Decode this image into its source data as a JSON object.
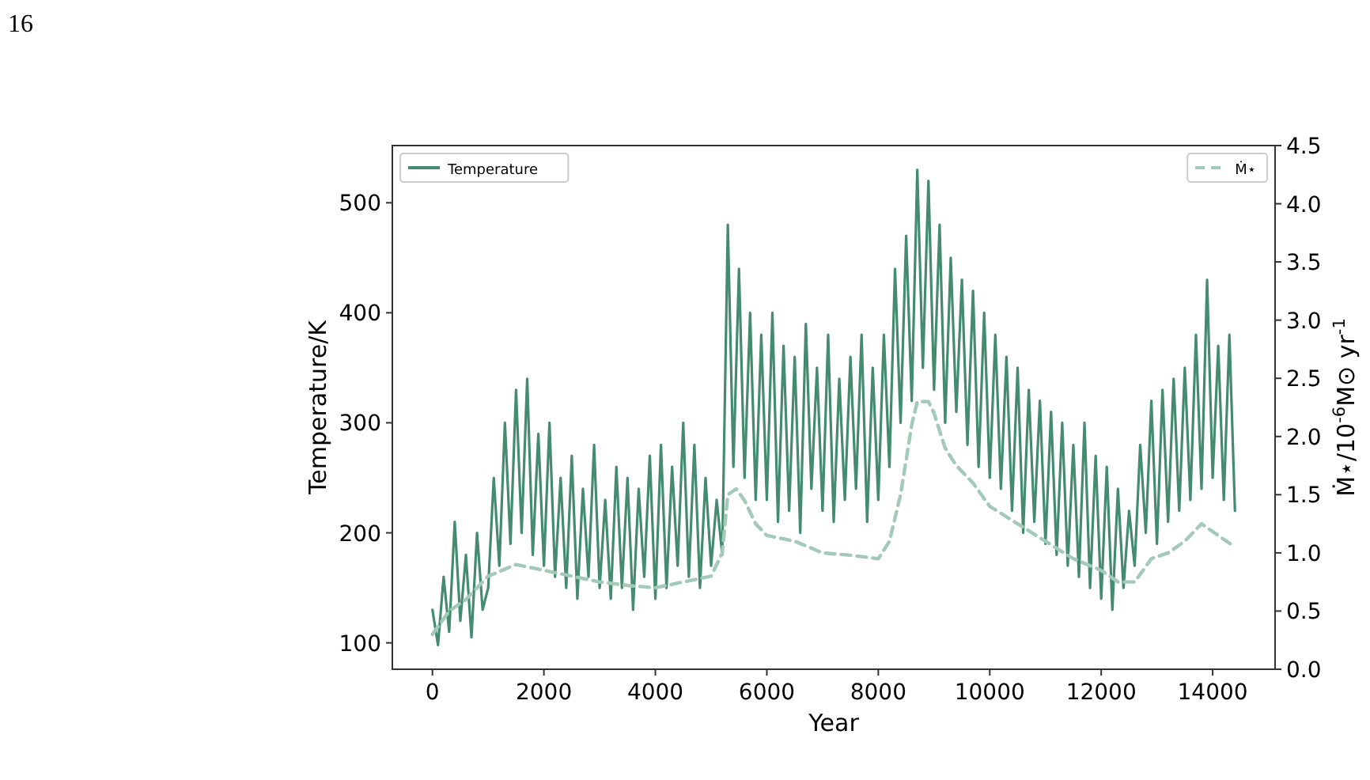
{
  "chart_data": {
    "type": "line",
    "xlabel": "Year",
    "ylabel": "Temperature/K",
    "y2label": "Ṁ⋆/10$^{-6}$M⊙ yr$^{-1}$",
    "annotations": [
      "16"
    ],
    "xlim": [
      -720,
      15120
    ],
    "xticks": [
      0,
      2000,
      4000,
      6000,
      8000,
      10000,
      12000,
      14000
    ],
    "ylim": [
      76,
      552
    ],
    "yticks": [
      100,
      200,
      300,
      400,
      500
    ],
    "y2lim": [
      0,
      4.5
    ],
    "y2ticks": [
      {
        "value": 0,
        "label": "0.0"
      },
      0.5,
      {
        "value": 1,
        "label": "1.0"
      },
      1.5,
      {
        "value": 2,
        "label": "2.0"
      },
      2.5,
      {
        "value": 3,
        "label": "3.0"
      },
      3.5,
      {
        "value": 4,
        "label": "4.0"
      },
      4.5
    ],
    "grid": false,
    "legend": "top",
    "series": [
      {
        "name": "Temperature",
        "color": "#458b70",
        "line_style": "solid",
        "x": [
          0,
          100,
          200,
          300,
          400,
          500,
          600,
          700,
          800,
          900,
          1000,
          1100,
          1200,
          1300,
          1400,
          1500,
          1600,
          1700,
          1800,
          1900,
          2000,
          2100,
          2200,
          2300,
          2400,
          2500,
          2600,
          2700,
          2800,
          2900,
          3000,
          3100,
          3200,
          3300,
          3400,
          3500,
          3600,
          3700,
          3800,
          3900,
          4000,
          4100,
          4200,
          4300,
          4400,
          4500,
          4600,
          4700,
          4800,
          4900,
          5000,
          5100,
          5200,
          5300,
          5400,
          5500,
          5600,
          5700,
          5800,
          5900,
          6000,
          6100,
          6200,
          6300,
          6400,
          6500,
          6600,
          6700,
          6800,
          6900,
          7000,
          7100,
          7200,
          7300,
          7400,
          7500,
          7600,
          7700,
          7800,
          7900,
          8000,
          8100,
          8200,
          8300,
          8400,
          8500,
          8600,
          8700,
          8800,
          8900,
          9000,
          9100,
          9200,
          9300,
          9400,
          9500,
          9600,
          9700,
          9800,
          9900,
          10000,
          10100,
          10200,
          10300,
          10400,
          10500,
          10600,
          10700,
          10800,
          10900,
          11000,
          11100,
          11200,
          11300,
          11400,
          11500,
          11600,
          11700,
          11800,
          11900,
          12000,
          12100,
          12200,
          12300,
          12400,
          12500,
          12600,
          12700,
          12800,
          12900,
          13000,
          13100,
          13200,
          13300,
          13400,
          13500,
          13600,
          13700,
          13800,
          13900,
          14000,
          14100,
          14200,
          14300,
          14400
        ],
        "values": [
          130,
          98,
          160,
          110,
          210,
          120,
          180,
          105,
          200,
          130,
          150,
          250,
          170,
          300,
          190,
          330,
          200,
          340,
          180,
          290,
          170,
          300,
          160,
          250,
          150,
          270,
          140,
          240,
          160,
          280,
          150,
          230,
          140,
          260,
          150,
          250,
          130,
          240,
          160,
          270,
          140,
          280,
          150,
          260,
          170,
          300,
          160,
          280,
          150,
          250,
          170,
          230,
          180,
          480,
          260,
          440,
          250,
          400,
          230,
          380,
          230,
          400,
          210,
          370,
          220,
          360,
          200,
          390,
          240,
          350,
          220,
          380,
          210,
          340,
          230,
          360,
          240,
          380,
          210,
          350,
          230,
          380,
          260,
          440,
          300,
          470,
          320,
          530,
          350,
          520,
          330,
          480,
          300,
          450,
          310,
          430,
          280,
          420,
          260,
          400,
          250,
          380,
          240,
          360,
          220,
          350,
          200,
          330,
          210,
          320,
          190,
          310,
          180,
          300,
          170,
          280,
          160,
          300,
          150,
          270,
          140,
          260,
          130,
          240,
          150,
          220,
          170,
          280,
          200,
          320,
          190,
          330,
          210,
          340,
          220,
          350,
          230,
          380,
          240,
          430,
          250,
          370,
          230,
          380,
          220
        ]
      },
      {
        "name": "Ṁ⋆",
        "color": "#a3c9b8",
        "line_style": "dashed",
        "axis": "y2",
        "x": [
          0,
          300,
          600,
          1000,
          1500,
          2000,
          2500,
          3000,
          3500,
          4000,
          4500,
          5000,
          5200,
          5300,
          5450,
          5600,
          5800,
          6000,
          6500,
          7000,
          7500,
          8000,
          8200,
          8400,
          8600,
          8700,
          8900,
          9000,
          9200,
          9400,
          9700,
          10000,
          10500,
          11000,
          11500,
          12000,
          12300,
          12600,
          12900,
          13200,
          13500,
          13800,
          14100,
          14400
        ],
        "values": [
          0.3,
          0.5,
          0.6,
          0.8,
          0.9,
          0.85,
          0.8,
          0.75,
          0.72,
          0.7,
          0.75,
          0.8,
          1.0,
          1.5,
          1.55,
          1.45,
          1.25,
          1.15,
          1.1,
          1.0,
          0.98,
          0.95,
          1.1,
          1.5,
          2.1,
          2.3,
          2.3,
          2.2,
          1.9,
          1.75,
          1.6,
          1.4,
          1.25,
          1.1,
          0.95,
          0.85,
          0.75,
          0.75,
          0.95,
          1.0,
          1.1,
          1.25,
          1.15,
          1.05
        ]
      }
    ]
  }
}
